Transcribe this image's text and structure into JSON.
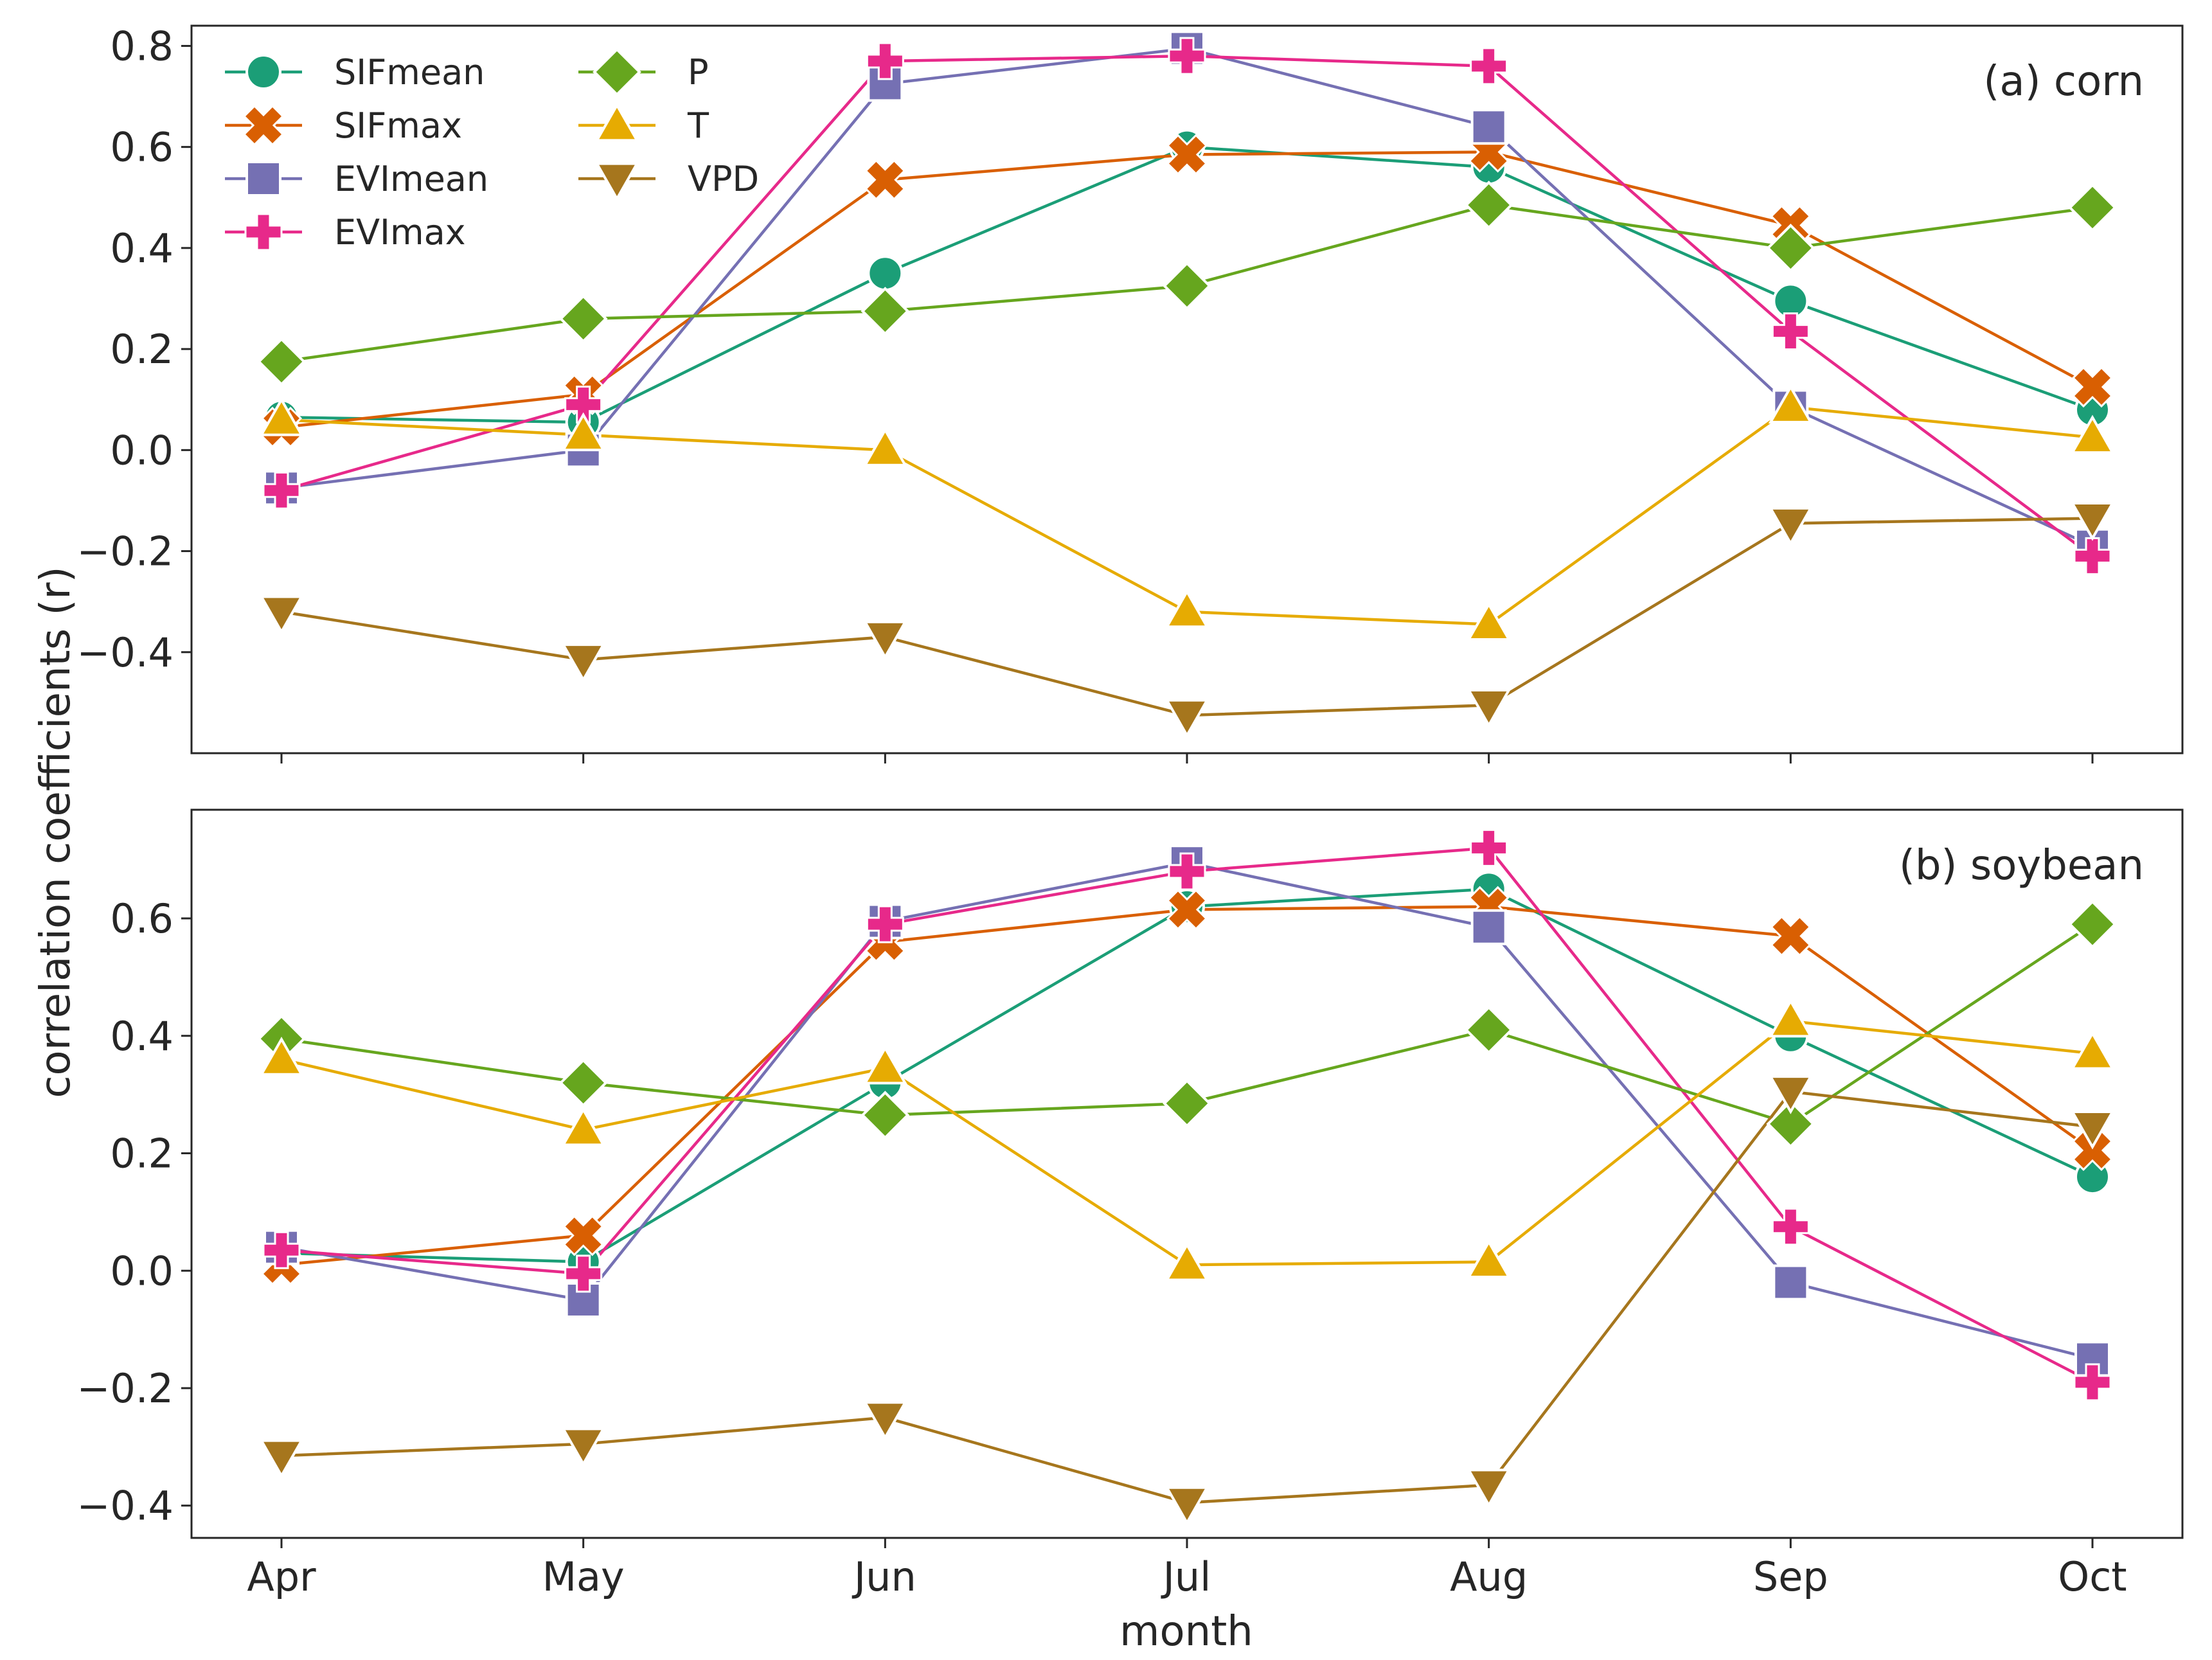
{
  "chart_data": {
    "type": "line",
    "categories": [
      "Apr",
      "May",
      "Jun",
      "Jul",
      "Aug",
      "Sep",
      "Oct"
    ],
    "xlabel": "month",
    "ylabel": "correlation coefficients (r)",
    "legend": {
      "placement": "top-left",
      "entries": [
        "SIFmean",
        "SIFmax",
        "EVImean",
        "EVImax",
        "P",
        "T",
        "VPD"
      ]
    },
    "series_styles": [
      {
        "name": "SIFmean",
        "color": "#1b9e77",
        "marker": "circle"
      },
      {
        "name": "SIFmax",
        "color": "#d95f02",
        "marker": "x"
      },
      {
        "name": "EVImean",
        "color": "#7570b3",
        "marker": "square"
      },
      {
        "name": "EVImax",
        "color": "#e7298a",
        "marker": "plus"
      },
      {
        "name": "P",
        "color": "#66a61e",
        "marker": "diamond"
      },
      {
        "name": "T",
        "color": "#e6ab02",
        "marker": "triangle-up"
      },
      {
        "name": "VPD",
        "color": "#a6761d",
        "marker": "triangle-down"
      }
    ],
    "panels": [
      {
        "title": "(a) corn",
        "ylim": [
          -0.6,
          0.84
        ],
        "yticks": [
          -0.4,
          -0.2,
          0.0,
          0.2,
          0.4,
          0.6,
          0.8
        ],
        "ytick_labels": [
          "−0.4",
          "−0.2",
          "0.0",
          "0.2",
          "0.4",
          "0.6",
          "0.8"
        ],
        "series": [
          {
            "name": "SIFmean",
            "values": [
              0.065,
              0.055,
              0.35,
              0.6,
              0.56,
              0.295,
              0.08
            ]
          },
          {
            "name": "SIFmax",
            "values": [
              0.045,
              0.11,
              0.535,
              0.585,
              0.59,
              0.445,
              0.125
            ]
          },
          {
            "name": "EVImean",
            "values": [
              -0.075,
              0.0,
              0.725,
              0.795,
              0.64,
              0.085,
              -0.19
            ]
          },
          {
            "name": "EVImax",
            "values": [
              -0.08,
              0.09,
              0.77,
              0.78,
              0.76,
              0.235,
              -0.21
            ]
          },
          {
            "name": "P",
            "values": [
              0.175,
              0.26,
              0.275,
              0.325,
              0.485,
              0.4,
              0.48
            ]
          },
          {
            "name": "T",
            "values": [
              0.06,
              0.03,
              0.0,
              -0.32,
              -0.345,
              0.085,
              0.025
            ]
          },
          {
            "name": "VPD",
            "values": [
              -0.32,
              -0.415,
              -0.37,
              -0.525,
              -0.505,
              -0.145,
              -0.135
            ]
          }
        ]
      },
      {
        "title": "(b) soybean",
        "ylim": [
          -0.455,
          0.785
        ],
        "yticks": [
          -0.4,
          -0.2,
          0.0,
          0.2,
          0.4,
          0.6
        ],
        "ytick_labels": [
          "−0.4",
          "−0.2",
          "0.0",
          "0.2",
          "0.4",
          "0.6"
        ],
        "series": [
          {
            "name": "SIFmean",
            "values": [
              0.03,
              0.015,
              0.32,
              0.62,
              0.65,
              0.4,
              0.16
            ]
          },
          {
            "name": "SIFmax",
            "values": [
              0.01,
              0.06,
              0.56,
              0.615,
              0.62,
              0.57,
              0.205
            ]
          },
          {
            "name": "EVImean",
            "values": [
              0.04,
              -0.05,
              0.595,
              0.695,
              0.585,
              -0.02,
              -0.15
            ]
          },
          {
            "name": "EVImax",
            "values": [
              0.035,
              -0.005,
              0.59,
              0.68,
              0.72,
              0.075,
              -0.19
            ]
          },
          {
            "name": "P",
            "values": [
              0.395,
              0.32,
              0.265,
              0.285,
              0.41,
              0.25,
              0.59
            ]
          },
          {
            "name": "T",
            "values": [
              0.36,
              0.24,
              0.345,
              0.01,
              0.015,
              0.425,
              0.37
            ]
          },
          {
            "name": "VPD",
            "values": [
              -0.315,
              -0.295,
              -0.25,
              -0.395,
              -0.365,
              0.305,
              0.245
            ]
          }
        ]
      }
    ]
  }
}
